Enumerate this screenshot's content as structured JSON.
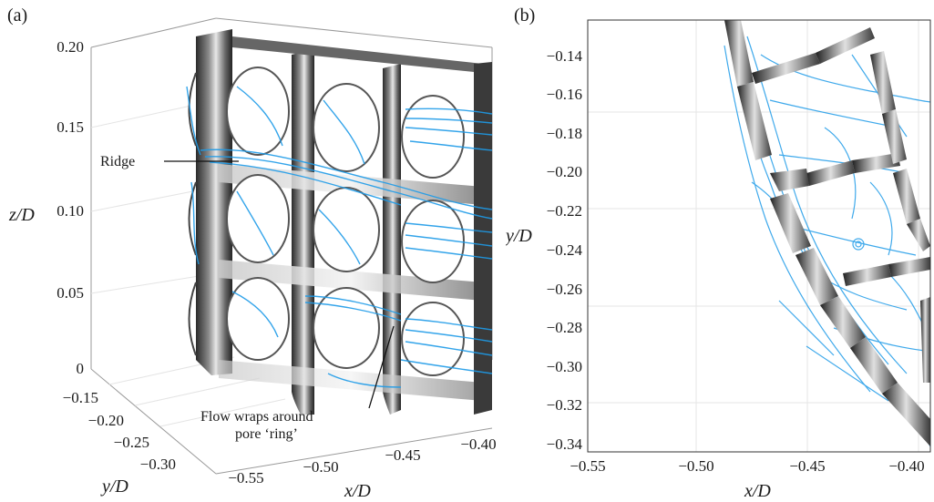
{
  "panel_a": {
    "label": "(a)",
    "zlabel": "z/D",
    "ylabel": "y/D",
    "xlabel": "x/D",
    "z_ticks": [
      "0.20",
      "0.15",
      "0.10",
      "0.05",
      "0"
    ],
    "y_ticks": [
      "−0.15",
      "−0.20",
      "−0.25",
      "−0.30"
    ],
    "x_ticks": [
      "−0.55",
      "−0.50",
      "−0.45",
      "−0.40"
    ],
    "annotations": {
      "ridge": "Ridge",
      "flow_line1": "Flow wraps around",
      "flow_line2": "pore ‘ring’"
    }
  },
  "panel_b": {
    "label": "(b)",
    "xlabel": "x/D",
    "ylabel": "y/D",
    "x_ticks": [
      "−0.55",
      "−0.50",
      "−0.45",
      "−0.40"
    ],
    "y_ticks": [
      "−0.14",
      "−0.16",
      "−0.18",
      "−0.20",
      "−0.22",
      "−0.24",
      "−0.26",
      "−0.28",
      "−0.30",
      "−0.32",
      "−0.34"
    ]
  },
  "colors": {
    "streamline": "#1e9be8",
    "structure_dark": "#2b2b2b",
    "structure_light": "#d8d8d8",
    "grid": "#e6e6e6"
  }
}
